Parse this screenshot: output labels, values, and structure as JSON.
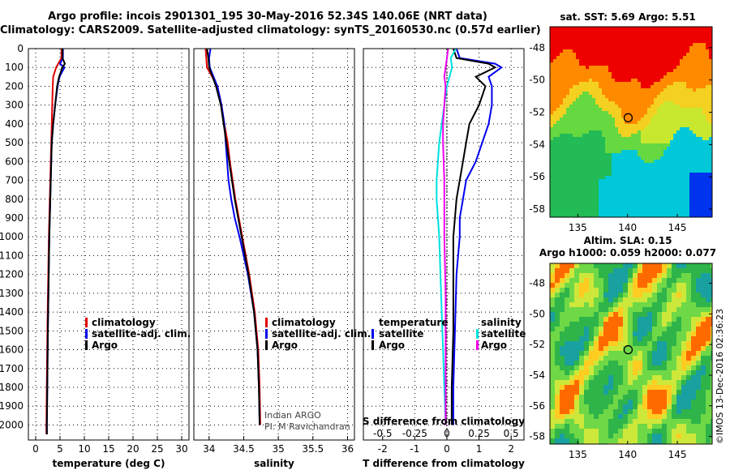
{
  "header": {
    "title_line1": "Argo profile: incois 2901301_195 30-May-2016 52.34S 140.06E (NRT data)",
    "title_line2": "Climatology: CARS2009. Satellite-adjusted climatology: synTS_20160530.nc (0.57d earlier)"
  },
  "depth_axis": {
    "ylim": [
      0,
      2080
    ],
    "ticks": [
      0,
      100,
      200,
      300,
      400,
      500,
      600,
      700,
      800,
      900,
      1000,
      1100,
      1200,
      1300,
      1400,
      1500,
      1600,
      1700,
      1800,
      1900,
      2000
    ]
  },
  "colors": {
    "climatology": "#e00000",
    "satellite": "#0000ee",
    "argo": "#000000",
    "cyan": "#00e0e0",
    "magenta": "#ee00ee"
  },
  "chart_data": [
    {
      "type": "line",
      "name": "temperature",
      "xlabel": "temperature (deg C)",
      "xlim": [
        -1.5,
        31.5
      ],
      "xticks": [
        0,
        5,
        10,
        15,
        20,
        25,
        30
      ],
      "legend": [
        "climatology",
        "satellite-adj. clim.",
        "Argo"
      ],
      "series": [
        {
          "name": "climatology",
          "depth": [
            0,
            50,
            100,
            150,
            200,
            300,
            400,
            500,
            700,
            1000,
            1500,
            2000,
            2050
          ],
          "values": [
            5.3,
            5.3,
            4.2,
            3.6,
            3.5,
            3.4,
            3.3,
            3.2,
            3.0,
            2.7,
            2.4,
            2.2,
            2.2
          ]
        },
        {
          "name": "satellite",
          "depth": [
            0,
            50,
            80,
            100,
            150,
            200,
            300,
            400,
            500,
            700,
            1000,
            1500,
            2000,
            2050
          ],
          "values": [
            5.6,
            5.6,
            5.0,
            5.9,
            4.9,
            4.5,
            4.0,
            3.6,
            3.3,
            3.1,
            2.8,
            2.5,
            2.3,
            2.3
          ]
        },
        {
          "name": "Argo",
          "depth": [
            0,
            50,
            80,
            100,
            150,
            200,
            300,
            400,
            500,
            700,
            1000,
            1500,
            2000,
            2050
          ],
          "values": [
            5.5,
            5.5,
            6.0,
            5.5,
            4.8,
            4.4,
            4.0,
            3.6,
            3.3,
            3.1,
            2.8,
            2.5,
            2.3,
            2.3
          ]
        }
      ]
    },
    {
      "type": "line",
      "name": "salinity",
      "xlabel": "salinity",
      "xlim": [
        33.78,
        36.1
      ],
      "xticks": [
        34,
        34.5,
        35,
        35.5,
        36
      ],
      "legend": [
        "climatology",
        "satellite-adj. clim.",
        "Argo"
      ],
      "annotations": [
        "Indian ARGO",
        "PI: M Ravichandran"
      ],
      "series": [
        {
          "name": "climatology",
          "depth": [
            0,
            100,
            200,
            300,
            400,
            500,
            600,
            700,
            800,
            900,
            1000,
            1200,
            1400,
            1600,
            1800,
            2000
          ],
          "values": [
            33.95,
            33.97,
            34.12,
            34.18,
            34.22,
            34.27,
            34.3,
            34.34,
            34.38,
            34.43,
            34.48,
            34.58,
            34.66,
            34.71,
            34.73,
            34.74
          ]
        },
        {
          "name": "satellite",
          "depth": [
            0,
            50,
            100,
            200,
            300,
            400,
            500,
            600,
            700,
            800,
            900,
            1000,
            1200,
            1400,
            1600,
            1800,
            2000
          ],
          "values": [
            34.02,
            34.0,
            34.01,
            34.12,
            34.18,
            34.22,
            34.24,
            34.26,
            34.28,
            34.32,
            34.37,
            34.44,
            34.56,
            34.65,
            34.7,
            34.72,
            34.73
          ]
        },
        {
          "name": "Argo",
          "depth": [
            0,
            50,
            100,
            200,
            300,
            400,
            500,
            600,
            700,
            800,
            900,
            1000,
            1200,
            1400,
            1600,
            1800,
            2000
          ],
          "values": [
            33.97,
            33.99,
            34.0,
            34.1,
            34.17,
            34.21,
            34.25,
            34.29,
            34.33,
            34.37,
            34.42,
            34.47,
            34.57,
            34.65,
            34.7,
            34.72,
            34.73
          ]
        }
      ]
    },
    {
      "type": "line",
      "name": "differences",
      "xlabel": "T difference from climatology",
      "xlabel2": "S difference from climatology",
      "xlim": [
        -2.6,
        2.4
      ],
      "xticks": [
        -2,
        -1,
        0,
        1,
        2
      ],
      "xticks_s": [
        -0.5,
        -0.25,
        0,
        0.25,
        0.5
      ],
      "xticks_s_labels": [
        "-0.5",
        "-0.25",
        "0",
        "0.25",
        "0.5"
      ],
      "legend_left_title": "temperature",
      "legend_right_title": "salinity",
      "legend_left": [
        "satellite",
        "Argo"
      ],
      "legend_right": [
        "satellite",
        "Argo"
      ],
      "series": [
        {
          "name": "T satellite",
          "depth": [
            0,
            50,
            80,
            100,
            150,
            200,
            300,
            400,
            500,
            600,
            700,
            800,
            900,
            1000,
            1200,
            1500,
            1800,
            2000
          ],
          "values": [
            0.3,
            0.4,
            1.5,
            1.7,
            1.3,
            1.4,
            1.4,
            1.3,
            1.1,
            0.9,
            0.6,
            0.5,
            0.4,
            0.4,
            0.3,
            0.25,
            0.2,
            0.2
          ]
        },
        {
          "name": "T Argo",
          "depth": [
            0,
            50,
            80,
            100,
            150,
            200,
            300,
            400,
            500,
            600,
            700,
            800,
            900,
            1000,
            1200,
            1500,
            1800,
            2000
          ],
          "values": [
            0.2,
            0.3,
            1.3,
            1.5,
            0.9,
            1.2,
            1.0,
            0.7,
            0.6,
            0.5,
            0.4,
            0.3,
            0.25,
            0.2,
            0.2,
            0.2,
            0.15,
            0.15
          ]
        },
        {
          "name": "S satellite",
          "depth": [
            0,
            50,
            100,
            200,
            300,
            400,
            500,
            600,
            700,
            800,
            900,
            1000,
            1200,
            1400,
            1600,
            1800,
            2000
          ],
          "values": [
            0.07,
            0.03,
            0.04,
            0.0,
            -0.02,
            -0.04,
            -0.06,
            -0.07,
            -0.08,
            -0.08,
            -0.07,
            -0.06,
            -0.05,
            -0.04,
            -0.03,
            -0.02,
            -0.01
          ]
        },
        {
          "name": "S Argo",
          "depth": [
            0,
            50,
            100,
            150,
            200,
            300,
            400,
            500,
            700,
            1000,
            1300,
            1600,
            2000
          ],
          "values": [
            0.01,
            0.0,
            -0.01,
            -0.02,
            -0.01,
            -0.02,
            -0.03,
            -0.03,
            -0.02,
            -0.02,
            -0.01,
            -0.01,
            -0.01
          ]
        }
      ]
    },
    {
      "type": "heatmap",
      "name": "sst-map",
      "title": "sat. SST: 5.69 Argo: 5.51",
      "xticks": [
        135,
        140,
        145
      ],
      "yticks": [
        -48,
        -50,
        -52,
        -54,
        -56,
        -58
      ],
      "xlim": [
        132.2,
        148.5
      ],
      "ylim": [
        -58.5,
        -46.7
      ],
      "marker": {
        "lon": 140.06,
        "lat": -52.34
      }
    },
    {
      "type": "heatmap",
      "name": "sla-map",
      "title": "Altim. SLA: 0.15",
      "subtitle": "Argo h1000: 0.059 h2000: 0.077",
      "xticks": [
        135,
        140,
        145
      ],
      "yticks": [
        -48,
        -50,
        -52,
        -54,
        -56,
        -58
      ],
      "xlim": [
        132.2,
        148.5
      ],
      "ylim": [
        -58.5,
        -46.7
      ],
      "marker": {
        "lon": 140.06,
        "lat": -52.34
      }
    }
  ],
  "credit": "©IMOS 13-Dec-2016 02:36:23"
}
